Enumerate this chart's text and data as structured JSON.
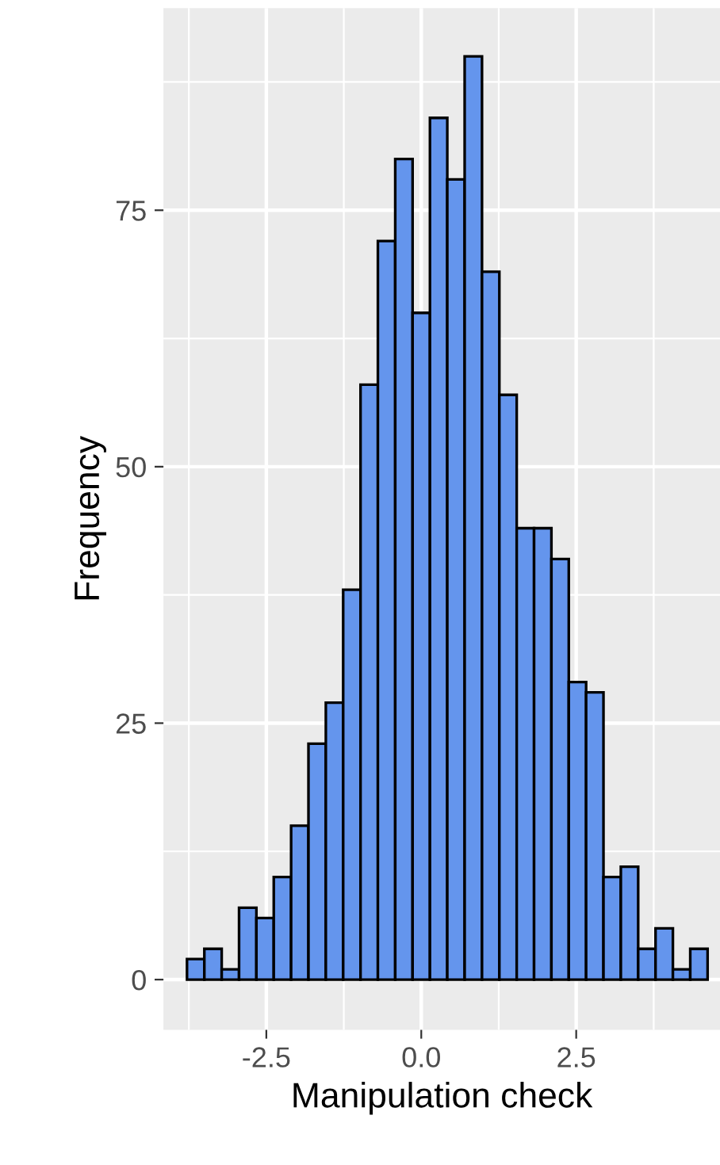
{
  "chart_data": {
    "type": "histogram",
    "xlabel": "Manipulation check",
    "ylabel": "Frequency",
    "bins": [
      -3.78,
      -3.5,
      -3.22,
      -2.94,
      -2.66,
      -2.38,
      -2.1,
      -1.82,
      -1.54,
      -1.26,
      -0.98,
      -0.7,
      -0.42,
      -0.14,
      0.14,
      0.42,
      0.7,
      0.98,
      1.26,
      1.54,
      1.82,
      2.1,
      2.38,
      2.66,
      2.94,
      3.22,
      3.5,
      3.78,
      4.06,
      4.34,
      4.62
    ],
    "values": [
      2,
      3,
      1,
      7,
      6,
      10,
      15,
      23,
      27,
      38,
      58,
      72,
      80,
      65,
      84,
      78,
      90,
      69,
      57,
      44,
      44,
      41,
      29,
      28,
      10,
      11,
      3,
      5,
      1,
      3
    ],
    "color": "#6495ed",
    "xlim": [
      -4.16,
      4.82
    ],
    "ylim": [
      -4.9,
      94.7
    ],
    "xticks": [
      -2.5,
      {
        "value": 0,
        "label": "0.0"
      },
      2.5
    ],
    "yticks": [
      0,
      25,
      50,
      75
    ],
    "grid": true
  }
}
